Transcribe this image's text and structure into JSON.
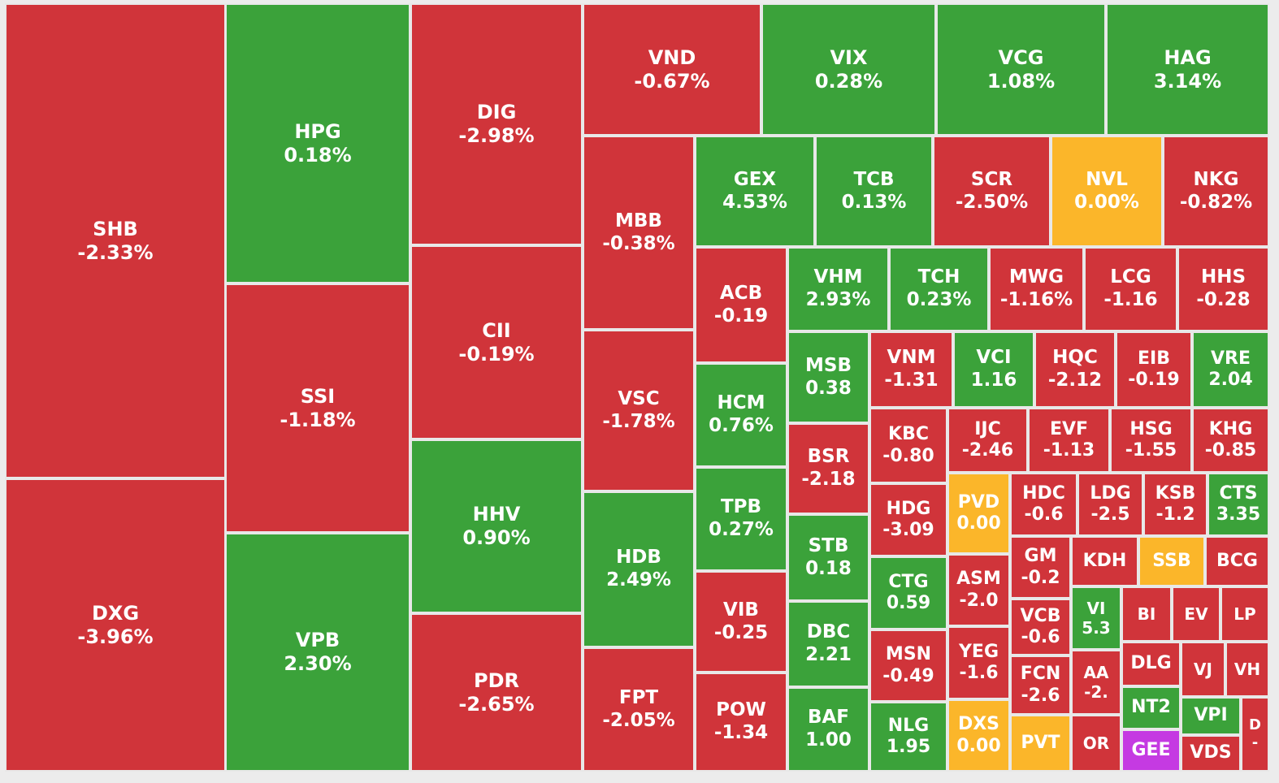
{
  "chart_data": {
    "type": "treemap",
    "colors": {
      "down": "#d0343a",
      "up": "#3ba23a",
      "flat": "#fbb62a",
      "ceiling": "#c53ae2"
    },
    "tiles": [
      {
        "ticker": "SHB",
        "change": "-2.33%",
        "status": "down"
      },
      {
        "ticker": "DXG",
        "change": "-3.96%",
        "status": "down"
      },
      {
        "ticker": "HPG",
        "change": "0.18%",
        "status": "up"
      },
      {
        "ticker": "SSI",
        "change": "-1.18%",
        "status": "down"
      },
      {
        "ticker": "VPB",
        "change": "2.30%",
        "status": "up"
      },
      {
        "ticker": "DIG",
        "change": "-2.98%",
        "status": "down"
      },
      {
        "ticker": "CII",
        "change": "-0.19%",
        "status": "down"
      },
      {
        "ticker": "HHV",
        "change": "0.90%",
        "status": "up"
      },
      {
        "ticker": "PDR",
        "change": "-2.65%",
        "status": "down"
      },
      {
        "ticker": "VND",
        "change": "-0.67%",
        "status": "down"
      },
      {
        "ticker": "VIX",
        "change": "0.28%",
        "status": "up"
      },
      {
        "ticker": "VCG",
        "change": "1.08%",
        "status": "up"
      },
      {
        "ticker": "HAG",
        "change": "3.14%",
        "status": "up"
      },
      {
        "ticker": "MBB",
        "change": "-0.38%",
        "status": "down"
      },
      {
        "ticker": "VSC",
        "change": "-1.78%",
        "status": "down"
      },
      {
        "ticker": "HDB",
        "change": "2.49%",
        "status": "up"
      },
      {
        "ticker": "FPT",
        "change": "-2.05%",
        "status": "down"
      },
      {
        "ticker": "GEX",
        "change": "4.53%",
        "status": "up"
      },
      {
        "ticker": "TCB",
        "change": "0.13%",
        "status": "up"
      },
      {
        "ticker": "SCR",
        "change": "-2.50%",
        "status": "down"
      },
      {
        "ticker": "NVL",
        "change": "0.00%",
        "status": "flat"
      },
      {
        "ticker": "NKG",
        "change": "-0.82%",
        "status": "down"
      },
      {
        "ticker": "ACB",
        "change": "-0.19",
        "status": "down"
      },
      {
        "ticker": "HCM",
        "change": "0.76%",
        "status": "up"
      },
      {
        "ticker": "TPB",
        "change": "0.27%",
        "status": "up"
      },
      {
        "ticker": "VIB",
        "change": "-0.25",
        "status": "down"
      },
      {
        "ticker": "POW",
        "change": "-1.34",
        "status": "down"
      },
      {
        "ticker": "VHM",
        "change": "2.93%",
        "status": "up"
      },
      {
        "ticker": "TCH",
        "change": "0.23%",
        "status": "up"
      },
      {
        "ticker": "MWG",
        "change": "-1.16%",
        "status": "down"
      },
      {
        "ticker": "LCG",
        "change": "-1.16",
        "status": "down"
      },
      {
        "ticker": "HHS",
        "change": "-0.28",
        "status": "down"
      },
      {
        "ticker": "MSB",
        "change": "0.38",
        "status": "up"
      },
      {
        "ticker": "BSR",
        "change": "-2.18",
        "status": "down"
      },
      {
        "ticker": "STB",
        "change": "0.18",
        "status": "up"
      },
      {
        "ticker": "DBC",
        "change": "2.21",
        "status": "up"
      },
      {
        "ticker": "BAF",
        "change": "1.00",
        "status": "up"
      },
      {
        "ticker": "VNM",
        "change": "-1.31",
        "status": "down"
      },
      {
        "ticker": "VCI",
        "change": "1.16",
        "status": "up"
      },
      {
        "ticker": "HQC",
        "change": "-2.12",
        "status": "down"
      },
      {
        "ticker": "EIB",
        "change": "-0.19",
        "status": "down"
      },
      {
        "ticker": "VRE",
        "change": "2.04",
        "status": "up"
      },
      {
        "ticker": "KBC",
        "change": "-0.80",
        "status": "down"
      },
      {
        "ticker": "HDG",
        "change": "-3.09",
        "status": "down"
      },
      {
        "ticker": "CTG",
        "change": "0.59",
        "status": "up"
      },
      {
        "ticker": "MSN",
        "change": "-0.49",
        "status": "down"
      },
      {
        "ticker": "NLG",
        "change": "1.95",
        "status": "up"
      },
      {
        "ticker": "IJC",
        "change": "-2.46",
        "status": "down"
      },
      {
        "ticker": "EVF",
        "change": "-1.13",
        "status": "down"
      },
      {
        "ticker": "HSG",
        "change": "-1.55",
        "status": "down"
      },
      {
        "ticker": "KHG",
        "change": "-0.85",
        "status": "down"
      },
      {
        "ticker": "PVD",
        "change": "0.00",
        "status": "flat"
      },
      {
        "ticker": "ASM",
        "change": "-2.0",
        "status": "down"
      },
      {
        "ticker": "YEG",
        "change": "-1.6",
        "status": "down"
      },
      {
        "ticker": "DXS",
        "change": "0.00",
        "status": "flat"
      },
      {
        "ticker": "HDC",
        "change": "-0.6",
        "status": "down"
      },
      {
        "ticker": "LDG",
        "change": "-2.5",
        "status": "down"
      },
      {
        "ticker": "KSB",
        "change": "-1.2",
        "status": "down"
      },
      {
        "ticker": "CTS",
        "change": "3.35",
        "status": "up"
      },
      {
        "ticker": "GM",
        "change": "-0.2",
        "status": "down"
      },
      {
        "ticker": "VCB",
        "change": "-0.6",
        "status": "down"
      },
      {
        "ticker": "FCN",
        "change": "-2.6",
        "status": "down"
      },
      {
        "ticker": "PVT",
        "change": "",
        "status": "flat"
      },
      {
        "ticker": "KDH",
        "change": "",
        "status": "down"
      },
      {
        "ticker": "SSB",
        "change": "",
        "status": "flat"
      },
      {
        "ticker": "BCG",
        "change": "",
        "status": "down"
      },
      {
        "ticker": "VI",
        "change": "5.3",
        "status": "up"
      },
      {
        "ticker": "AA",
        "change": "-2.",
        "status": "down"
      },
      {
        "ticker": "OR",
        "change": "",
        "status": "down"
      },
      {
        "ticker": "BI",
        "change": "",
        "status": "down"
      },
      {
        "ticker": "EV",
        "change": "",
        "status": "down"
      },
      {
        "ticker": "LP",
        "change": "",
        "status": "down"
      },
      {
        "ticker": "DLG",
        "change": "",
        "status": "down"
      },
      {
        "ticker": "VJ",
        "change": "",
        "status": "down"
      },
      {
        "ticker": "VH",
        "change": "",
        "status": "down"
      },
      {
        "ticker": "NT2",
        "change": "",
        "status": "up"
      },
      {
        "ticker": "VPI",
        "change": "",
        "status": "up"
      },
      {
        "ticker": "D",
        "change": "-",
        "status": "down"
      },
      {
        "ticker": "GEE",
        "change": "",
        "status": "ceiling"
      },
      {
        "ticker": "VDS",
        "change": "",
        "status": "down"
      }
    ]
  }
}
